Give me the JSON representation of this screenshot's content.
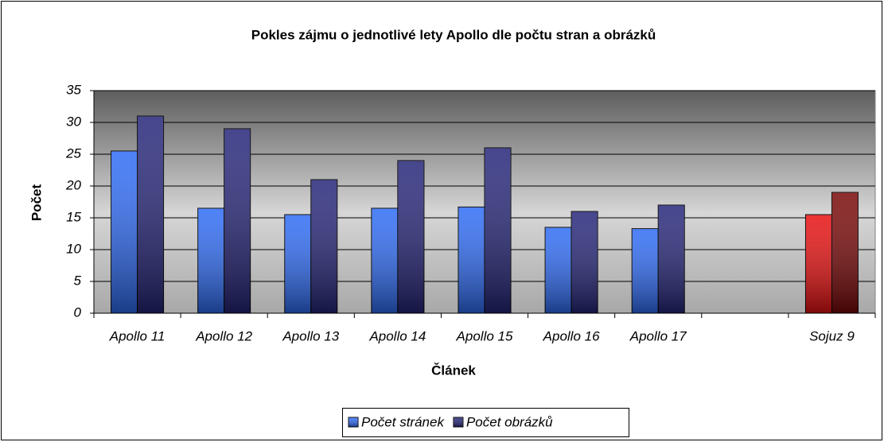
{
  "chart_data": {
    "type": "bar",
    "title": "Pokles zájmu o jednotlivé lety Apollo dle počtu stran a obrázků",
    "xlabel": "Článek",
    "ylabel": "Počet",
    "categories": [
      "Apollo 11",
      "Apollo 12",
      "Apollo 13",
      "Apollo 14",
      "Apollo 15",
      "Apollo 16",
      "Apollo 17",
      null,
      "Sojuz 9"
    ],
    "series": [
      {
        "name": "Počet stránek",
        "color": "#2f6cf5",
        "colors": [
          "#2f6cf5",
          "#2f6cf5",
          "#2f6cf5",
          "#2f6cf5",
          "#2f6cf5",
          "#2f6cf5",
          "#2f6cf5",
          "#2f6cf5",
          "#e81010"
        ],
        "values": [
          25.5,
          16.5,
          15.5,
          16.5,
          16.7,
          13.5,
          13.3,
          null,
          15.5
        ]
      },
      {
        "name": "Počet obrázků",
        "color": "#26267a",
        "colors": [
          "#26267a",
          "#26267a",
          "#26267a",
          "#26267a",
          "#26267a",
          "#26267a",
          "#26267a",
          "#26267a",
          "#7a0808"
        ],
        "values": [
          31,
          29,
          21,
          24,
          26,
          16,
          17,
          null,
          19
        ]
      }
    ],
    "ylim": [
      0,
      35
    ],
    "yticks": [
      0,
      5,
      10,
      15,
      20,
      25,
      30,
      35
    ],
    "grid": true,
    "legend": "bottom"
  }
}
